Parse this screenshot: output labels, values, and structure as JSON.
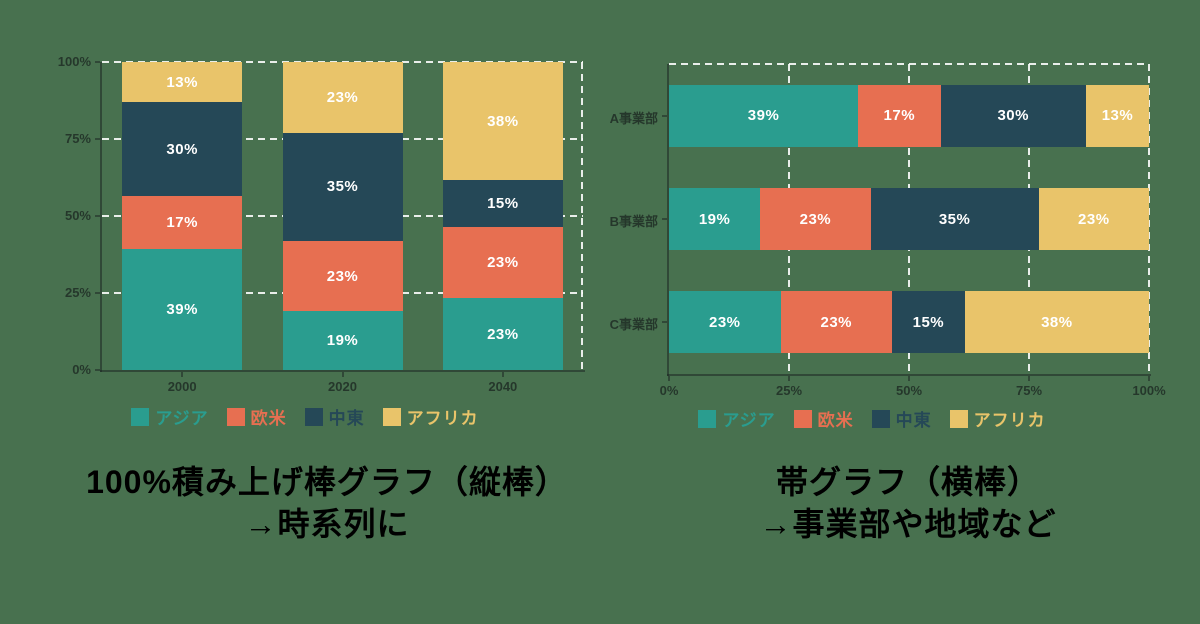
{
  "background_color": "#48714f",
  "palette": {
    "asia_teal": "#2a9d8f",
    "west_orange": "#e76f51",
    "middle_east_navy": "#254857",
    "africa_yellow": "#e9c46a",
    "grid_white": "#ffffff",
    "caption_black": "#000000"
  },
  "chart_data": [
    {
      "type": "bar",
      "subtype": "100%-stacked-vertical",
      "categories": [
        "2000",
        "2020",
        "2040"
      ],
      "series": [
        {
          "name": "アジア",
          "color": "#2a9d8f",
          "values": [
            39,
            19,
            23
          ]
        },
        {
          "name": "欧米",
          "color": "#e76f51",
          "values": [
            17,
            23,
            23
          ]
        },
        {
          "name": "中東",
          "color": "#254857",
          "values": [
            30,
            35,
            15
          ]
        },
        {
          "name": "アフリカ",
          "color": "#e9c46a",
          "values": [
            13,
            23,
            38
          ]
        }
      ],
      "value_suffix": "%",
      "y_ticks": [
        "0%",
        "25%",
        "50%",
        "75%",
        "100%"
      ],
      "ylim": [
        0,
        100
      ],
      "grid": "dashed-white-horizontal",
      "legend_position": "bottom",
      "legend": [
        "アジア",
        "欧米",
        "中東",
        "アフリカ"
      ]
    },
    {
      "type": "bar",
      "subtype": "100%-stacked-horizontal",
      "categories": [
        "A事業部",
        "B事業部",
        "C事業部"
      ],
      "series": [
        {
          "name": "アジア",
          "color": "#2a9d8f",
          "values": [
            39,
            19,
            23
          ]
        },
        {
          "name": "欧米",
          "color": "#e76f51",
          "values": [
            17,
            23,
            23
          ]
        },
        {
          "name": "中東",
          "color": "#254857",
          "values": [
            30,
            35,
            15
          ]
        },
        {
          "name": "アフリカ",
          "color": "#e9c46a",
          "values": [
            13,
            23,
            38
          ]
        }
      ],
      "value_suffix": "%",
      "x_ticks": [
        "0%",
        "25%",
        "50%",
        "75%",
        "100%"
      ],
      "xlim": [
        0,
        100
      ],
      "grid": "dashed-white-vertical",
      "legend_position": "bottom",
      "legend": [
        "アジア",
        "欧米",
        "中東",
        "アフリカ"
      ]
    }
  ],
  "captions": {
    "left": {
      "line1": "100%積み上げ棒グラフ（縦棒）",
      "line2": "→時系列に"
    },
    "right": {
      "line1": "帯グラフ（横棒）",
      "line2": "→事業部や地域など"
    }
  }
}
